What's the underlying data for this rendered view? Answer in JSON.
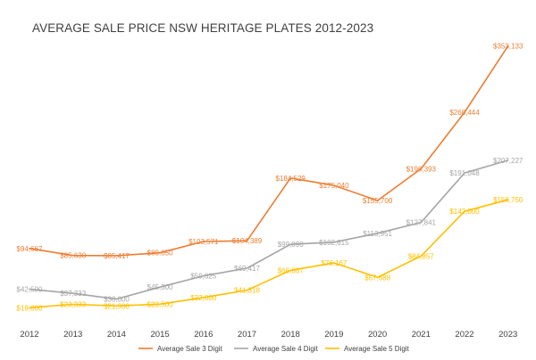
{
  "chart_data": {
    "type": "line",
    "title": "AVERAGE SALE PRICE NSW HERITAGE PLATES 2012-2023",
    "xlabel": "",
    "ylabel": "",
    "ylim": [
      0,
      380000
    ],
    "grid": false,
    "legend_position": "bottom",
    "categories": [
      "2012",
      "2013",
      "2014",
      "2015",
      "2016",
      "2017",
      "2018",
      "2019",
      "2020",
      "2021",
      "2022",
      "2023"
    ],
    "series": [
      {
        "name": "Average Sale 3 Digit",
        "color": "#ED7D31",
        "values": [
          94667,
          85630,
          85417,
          89050,
          103571,
          104389,
          184529,
          175040,
          155700,
          196393,
          268444,
          353133
        ],
        "labels": [
          "$94,667",
          "$85,630",
          "$85,417",
          "$89,050",
          "$103,571",
          "$104,389",
          "$184,529",
          "$175,040",
          "$155,700",
          "$196,393",
          "$268,444",
          "$353,133"
        ]
      },
      {
        "name": "Average Sale 4 Digit",
        "color": "#A5A5A5",
        "values": [
          42500,
          37333,
          30000,
          45300,
          59625,
          69417,
          99890,
          102615,
          113951,
          127841,
          191048,
          207227
        ],
        "labels": [
          "$42,500",
          "$37,333",
          "$30,000",
          "$45,300",
          "$59,625",
          "$69,417",
          "$99,890",
          "$102,615",
          "$113,951",
          "$127,841",
          "$191,048",
          "$207,227"
        ]
      },
      {
        "name": "Average Sale 5 Digit",
        "color": "#FFC000",
        "values": [
          19000,
          23333,
          21300,
          23500,
          32000,
          41318,
          66667,
          76167,
          57688,
          84857,
          142000,
          156750
        ],
        "labels": [
          "$19,000",
          "$23,333",
          "$21,300",
          "$23,500",
          "$32,000",
          "$41,318",
          "$66,667",
          "$76,167",
          "$57,688",
          "$84,857",
          "$142,000",
          "$156,750"
        ]
      }
    ]
  }
}
